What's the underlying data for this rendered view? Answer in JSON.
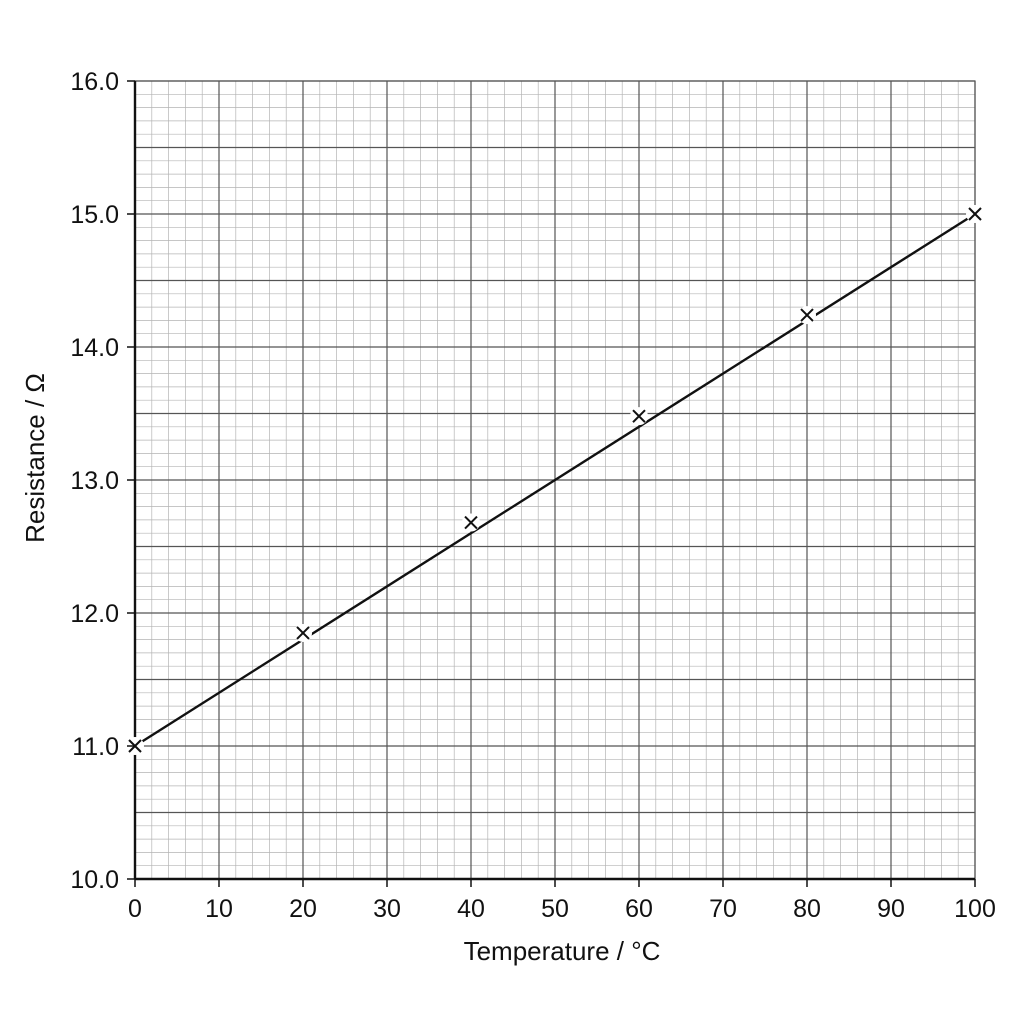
{
  "chart_data": {
    "type": "line",
    "title": "",
    "xlabel": "Temperature / °C",
    "ylabel": "Resistance / Ω",
    "xlim": [
      0,
      100
    ],
    "ylim": [
      10.0,
      16.0
    ],
    "x_ticks": [
      0,
      10,
      20,
      30,
      40,
      50,
      60,
      70,
      80,
      90,
      100
    ],
    "x_tick_labels": [
      "0",
      "10",
      "20",
      "30",
      "40",
      "50",
      "60",
      "70",
      "80",
      "90",
      "100"
    ],
    "y_ticks": [
      10.0,
      11.0,
      12.0,
      13.0,
      14.0,
      15.0,
      16.0
    ],
    "y_tick_labels": [
      "10.0",
      "11.0",
      "12.0",
      "13.0",
      "14.0",
      "15.0",
      "16.0"
    ],
    "grid": "graph-paper",
    "marker": "cross",
    "series": [
      {
        "x": [
          0,
          20,
          40,
          60,
          80,
          100
        ],
        "y": [
          11.0,
          11.85,
          12.68,
          13.48,
          14.24,
          15.0
        ],
        "line": {
          "x": [
            0,
            100
          ],
          "y": [
            11.0,
            15.0
          ]
        }
      }
    ],
    "colors": {
      "line": "#111111",
      "grid_major": "#555555",
      "grid_minor": "#b4b4b4",
      "axis": "#111111"
    }
  }
}
